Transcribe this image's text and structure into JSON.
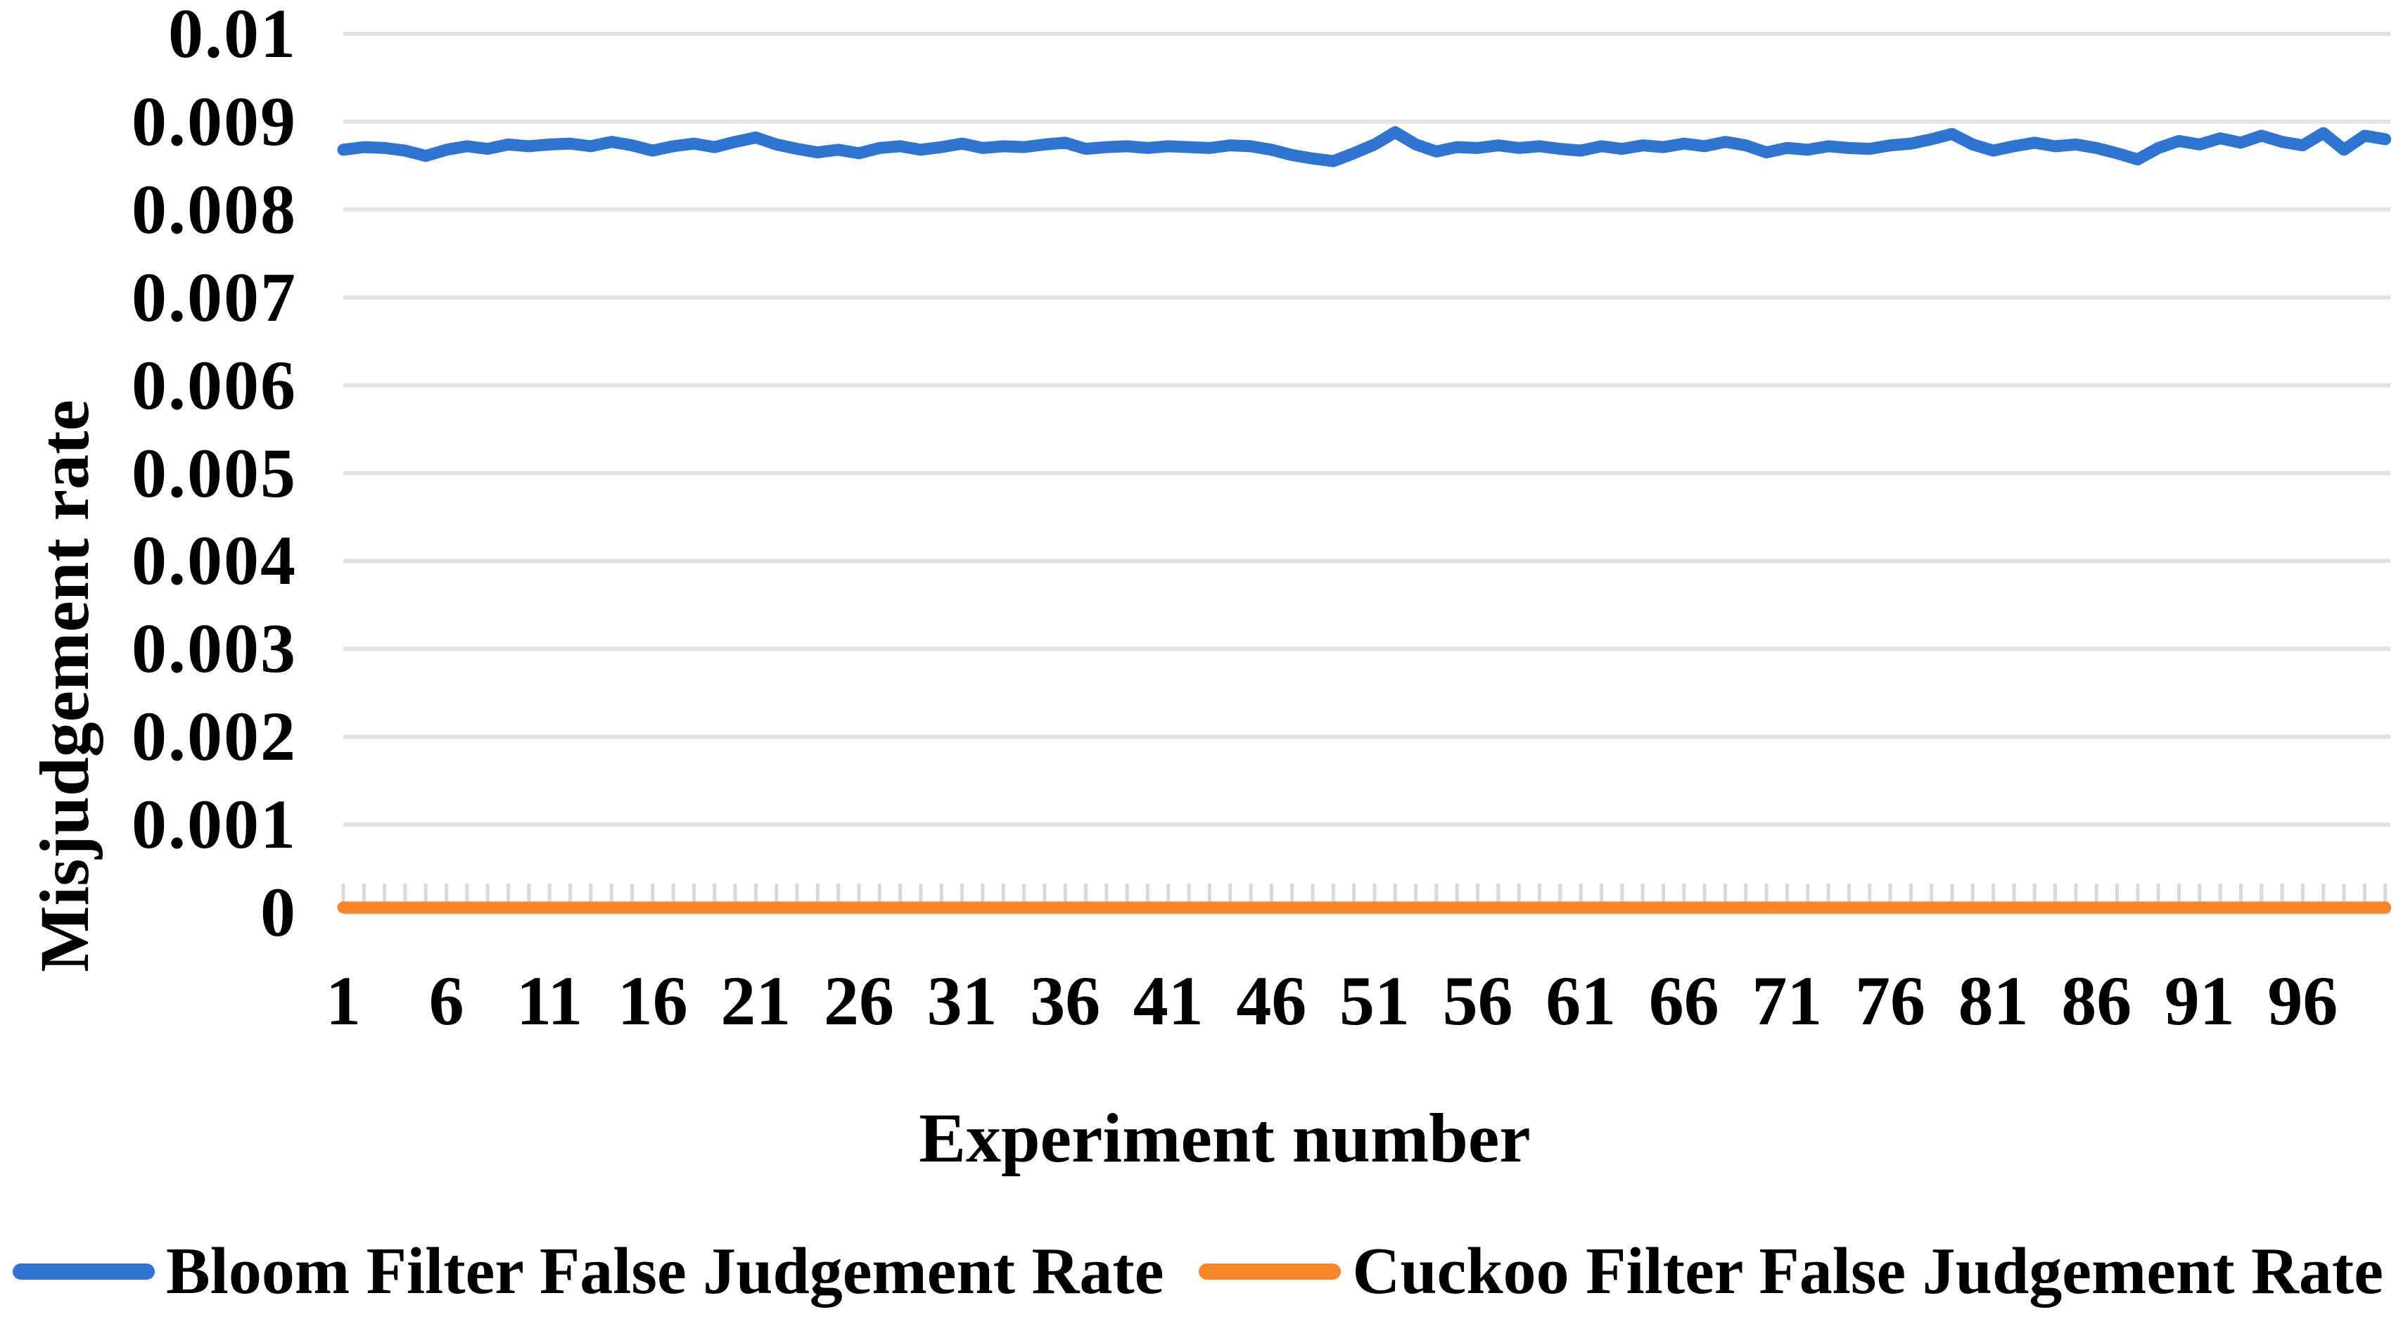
{
  "chart_data": {
    "type": "line",
    "title": "",
    "xlabel": "Experiment number",
    "ylabel": "Misjudgement rate",
    "x": [
      1,
      2,
      3,
      4,
      5,
      6,
      7,
      8,
      9,
      10,
      11,
      12,
      13,
      14,
      15,
      16,
      17,
      18,
      19,
      20,
      21,
      22,
      23,
      24,
      25,
      26,
      27,
      28,
      29,
      30,
      31,
      32,
      33,
      34,
      35,
      36,
      37,
      38,
      39,
      40,
      41,
      42,
      43,
      44,
      45,
      46,
      47,
      48,
      49,
      50,
      51,
      52,
      53,
      54,
      55,
      56,
      57,
      58,
      59,
      60,
      61,
      62,
      63,
      64,
      65,
      66,
      67,
      68,
      69,
      70,
      71,
      72,
      73,
      74,
      75,
      76,
      77,
      78,
      79,
      80,
      81,
      82,
      83,
      84,
      85,
      86,
      87,
      88,
      89,
      90,
      91,
      92,
      93,
      94,
      95,
      96,
      97,
      98,
      99,
      100
    ],
    "x_tick_labels": [
      "1",
      "6",
      "11",
      "16",
      "21",
      "26",
      "31",
      "36",
      "41",
      "46",
      "51",
      "56",
      "61",
      "66",
      "71",
      "76",
      "81",
      "86",
      "91",
      "96"
    ],
    "y_tick_labels": [
      "0.01",
      "0.009",
      "0.008",
      "0.007",
      "0.006",
      "0.005",
      "0.004",
      "0.003",
      "0.002",
      "0.001",
      "0"
    ],
    "y_tick_values": [
      0.01,
      0.009,
      0.008,
      0.007,
      0.006,
      0.005,
      0.004,
      0.003,
      0.002,
      0.001,
      0
    ],
    "ylim": [
      0,
      0.01
    ],
    "grid": "horizontal",
    "legend_position": "bottom",
    "series": [
      {
        "name": "Bloom Filter False Judgement Rate",
        "color": "#2E74D0",
        "values": [
          0.00868,
          0.00871,
          0.0087,
          0.00867,
          0.00861,
          0.00868,
          0.00872,
          0.00869,
          0.00874,
          0.00872,
          0.00874,
          0.00875,
          0.00872,
          0.00877,
          0.00873,
          0.00867,
          0.00872,
          0.00875,
          0.00871,
          0.00877,
          0.00882,
          0.00874,
          0.00869,
          0.00865,
          0.00868,
          0.00864,
          0.0087,
          0.00872,
          0.00868,
          0.00871,
          0.00875,
          0.0087,
          0.00872,
          0.00871,
          0.00874,
          0.00876,
          0.00869,
          0.00871,
          0.00872,
          0.0087,
          0.00872,
          0.00871,
          0.0087,
          0.00873,
          0.00872,
          0.00868,
          0.00862,
          0.00858,
          0.00855,
          0.00864,
          0.00874,
          0.00888,
          0.00874,
          0.00866,
          0.00871,
          0.0087,
          0.00873,
          0.0087,
          0.00872,
          0.00869,
          0.00867,
          0.00872,
          0.00869,
          0.00873,
          0.00871,
          0.00875,
          0.00872,
          0.00877,
          0.00873,
          0.00865,
          0.0087,
          0.00868,
          0.00872,
          0.0087,
          0.00869,
          0.00873,
          0.00875,
          0.0088,
          0.00886,
          0.00874,
          0.00867,
          0.00872,
          0.00876,
          0.00872,
          0.00874,
          0.0087,
          0.00864,
          0.00857,
          0.0087,
          0.00878,
          0.00874,
          0.00881,
          0.00876,
          0.00884,
          0.00877,
          0.00873,
          0.00887,
          0.00868,
          0.00884,
          0.0088
        ]
      },
      {
        "name": "Cuckoo Filter False Judgement Rate",
        "color": "#F8862B",
        "values": [
          0,
          0,
          0,
          0,
          0,
          0,
          0,
          0,
          0,
          0,
          0,
          0,
          0,
          0,
          0,
          0,
          0,
          0,
          0,
          0,
          0,
          0,
          0,
          0,
          0,
          0,
          0,
          0,
          0,
          0,
          0,
          0,
          0,
          0,
          0,
          0,
          0,
          0,
          0,
          0,
          0,
          0,
          0,
          0,
          0,
          0,
          0,
          0,
          0,
          0,
          0,
          0,
          0,
          0,
          0,
          0,
          0,
          0,
          0,
          0,
          0,
          0,
          0,
          0,
          0,
          0,
          0,
          0,
          0,
          0,
          0,
          0,
          0,
          0,
          0,
          0,
          0,
          0,
          0,
          0,
          0,
          0,
          0,
          0,
          0,
          0,
          0,
          0,
          0,
          0,
          0,
          0,
          0,
          0,
          0,
          0,
          0,
          0,
          0,
          0
        ]
      }
    ]
  }
}
